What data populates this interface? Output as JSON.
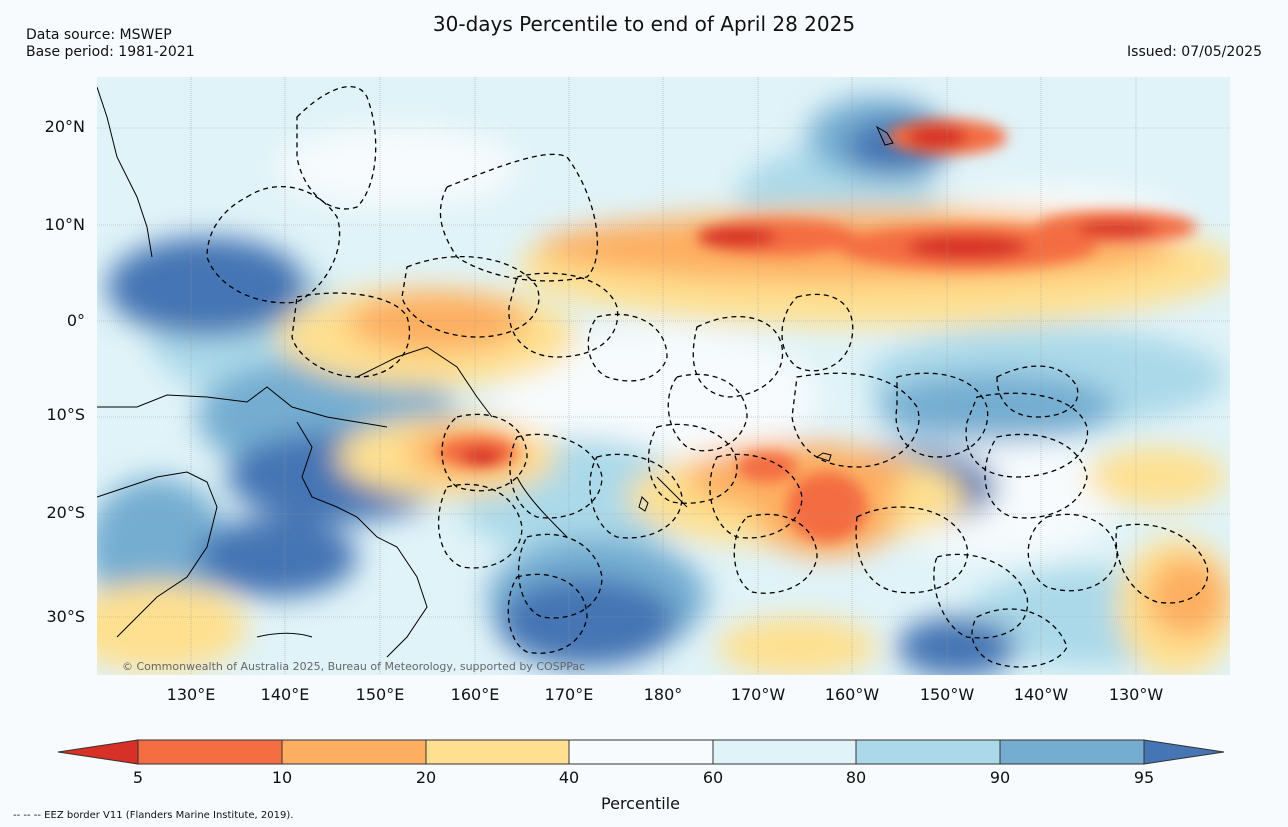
{
  "header": {
    "title": "30-days Percentile to end of April 28 2025",
    "source_line1": "Data source: MSWEP",
    "source_line2": "Base period: 1981-2021",
    "issued": "Issued: 07/05/2025"
  },
  "map": {
    "lat_labels": [
      "20°N",
      "10°N",
      "0°",
      "10°S",
      "20°S",
      "30°S"
    ],
    "lon_labels": [
      "130°E",
      "140°E",
      "150°E",
      "160°E",
      "170°E",
      "180°",
      "170°W",
      "160°W",
      "150°W",
      "140°W",
      "130°W"
    ],
    "copyright": "© Commonwealth of Australia 2025, Bureau of Meteorology, supported by COSPPac"
  },
  "colorbar": {
    "title": "Percentile",
    "ticks": [
      "5",
      "10",
      "20",
      "40",
      "60",
      "80",
      "90",
      "95"
    ],
    "colors": {
      "below5": "#d73027",
      "p5_10": "#f46d43",
      "p10_20": "#fdae61",
      "p20_40": "#fee090",
      "p40_60": "#f7fbfd",
      "p60_80": "#e0f3f8",
      "p80_90": "#abd9e9",
      "p90_95": "#74add1",
      "above95": "#4575b4"
    }
  },
  "footer": {
    "legend_line": "-- -- -- EEZ border V11 (Flanders Marine Institute, 2019)."
  }
}
